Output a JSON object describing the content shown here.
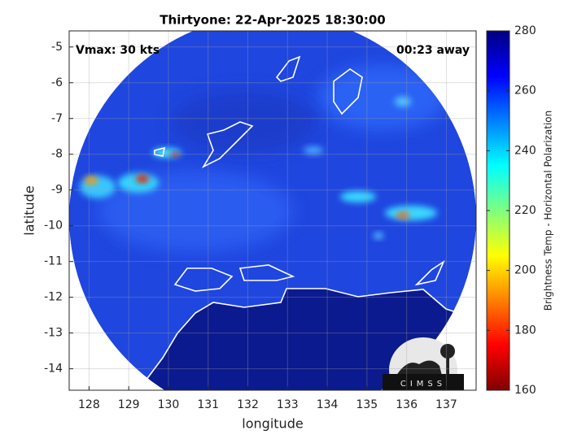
{
  "chart_data": {
    "type": "map",
    "title": "Thirtyone: 22-Apr-2025 18:30:00",
    "annotations": [
      "Vmax: 30 kts",
      "00:23 away"
    ],
    "xlabel": "longitude",
    "ylabel": "latitude",
    "xlim": [
      127.5,
      137.75
    ],
    "xticks": [
      128,
      129,
      130,
      131,
      132,
      133,
      134,
      135,
      136,
      137
    ],
    "ylim": [
      -14.6,
      -4.55
    ],
    "yticks": [
      -14,
      -13,
      -12,
      -11,
      -10,
      -9,
      -8,
      -7,
      -6,
      -5
    ],
    "grid": true,
    "colorbar": {
      "label": "Brightness Temp - Horizontal Polarization",
      "colormap": "jet",
      "lim": [
        160,
        280
      ],
      "ticks": [
        160,
        180,
        200,
        220,
        240,
        260,
        280
      ]
    },
    "logo": "CIMSS"
  }
}
